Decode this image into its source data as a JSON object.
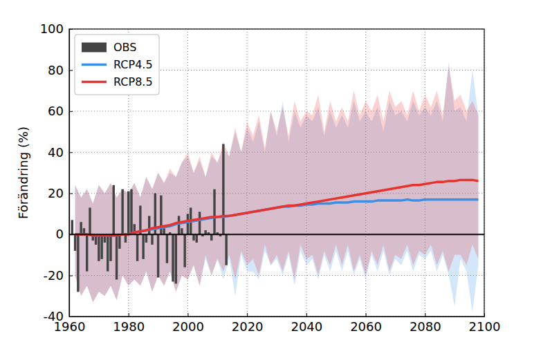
{
  "chart_data": {
    "type": "line",
    "y_label": "Förändring (%)",
    "xlim": [
      1960,
      2100
    ],
    "xticks": [
      1960,
      1980,
      2000,
      2020,
      2040,
      2060,
      2080,
      2100
    ],
    "ylim": [
      -40,
      100
    ],
    "yticks": [
      -40,
      -20,
      0,
      20,
      40,
      60,
      80,
      100
    ],
    "grid": true,
    "legend": "upper left",
    "x": [
      1962,
      1964,
      1966,
      1968,
      1970,
      1972,
      1974,
      1976,
      1978,
      1980,
      1982,
      1984,
      1986,
      1988,
      1990,
      1992,
      1994,
      1996,
      1998,
      2000,
      2002,
      2004,
      2006,
      2008,
      2010,
      2012,
      2014,
      2016,
      2018,
      2020,
      2022,
      2024,
      2026,
      2028,
      2030,
      2032,
      2034,
      2036,
      2038,
      2040,
      2042,
      2044,
      2046,
      2048,
      2050,
      2052,
      2054,
      2056,
      2058,
      2060,
      2062,
      2064,
      2066,
      2068,
      2070,
      2072,
      2074,
      2076,
      2078,
      2080,
      2082,
      2084,
      2086,
      2088,
      2090,
      2092,
      2094,
      2096,
      2098
    ],
    "series": [
      {
        "name": "OBS",
        "type": "bar",
        "color": "#444444",
        "x": [
          1961,
          1962,
          1963,
          1964,
          1965,
          1966,
          1967,
          1968,
          1969,
          1970,
          1971,
          1972,
          1973,
          1974,
          1975,
          1976,
          1977,
          1978,
          1979,
          1980,
          1981,
          1982,
          1983,
          1984,
          1985,
          1986,
          1987,
          1988,
          1989,
          1990,
          1991,
          1992,
          1993,
          1994,
          1995,
          1996,
          1997,
          1998,
          1999,
          2000,
          2001,
          2002,
          2003,
          2004,
          2005,
          2006,
          2007,
          2008,
          2009,
          2010,
          2011,
          2012,
          2013
        ],
        "values": [
          7,
          -8,
          -28,
          6,
          3,
          -18,
          13,
          -3,
          -5,
          -13,
          -12,
          -4,
          -18,
          -13,
          24,
          -22,
          -7,
          22,
          -4,
          21,
          22,
          5,
          -13,
          14,
          -12,
          -4,
          9,
          -5,
          20,
          -21,
          19,
          3,
          -14,
          1,
          -23,
          -24,
          9,
          3,
          -16,
          10,
          13,
          -3,
          -4,
          11,
          -1,
          2,
          1,
          -3,
          22,
          1,
          -1,
          44,
          -15
        ]
      },
      {
        "name": "RCP4.5",
        "type": "line",
        "color": "#3a8ee6",
        "values": [
          0,
          0,
          0,
          -0.5,
          -0.5,
          -0.5,
          -0.5,
          -0.5,
          0,
          0,
          1,
          1.5,
          2,
          2.5,
          3,
          3.5,
          4,
          5,
          5.5,
          6,
          6.5,
          7,
          7.5,
          8,
          8.5,
          8.5,
          9,
          9.5,
          10,
          10.5,
          11,
          11.5,
          12,
          12.5,
          13,
          13.5,
          13.5,
          14,
          14,
          14.5,
          14.5,
          15,
          15,
          15,
          15.5,
          15.5,
          15.5,
          16,
          16,
          16,
          16,
          16.5,
          16.5,
          16.5,
          16.5,
          16.5,
          17,
          16.5,
          16.5,
          17,
          17,
          17,
          17,
          17,
          17,
          17,
          17,
          17,
          17
        ],
        "low": [
          -20,
          -30,
          -25,
          -33,
          -28,
          -30,
          -25,
          -32,
          -20,
          -25,
          -22,
          -25,
          -18,
          -28,
          -20,
          -25,
          -18,
          -28,
          -20,
          -22,
          -15,
          -25,
          -12,
          -20,
          -12,
          -22,
          -12,
          -30,
          -10,
          -18,
          -18,
          -22,
          -8,
          -15,
          -12,
          -20,
          -10,
          -25,
          -8,
          -15,
          -12,
          -22,
          -10,
          -18,
          -8,
          -18,
          -8,
          -20,
          -12,
          -22,
          -10,
          -18,
          -8,
          -20,
          -12,
          -15,
          -8,
          -18,
          -10,
          -12,
          -8,
          -18,
          -10,
          -20,
          -35,
          -12,
          -18,
          -38,
          -15
        ],
        "high": [
          24,
          18,
          22,
          15,
          24,
          20,
          25,
          18,
          22,
          20,
          25,
          18,
          28,
          22,
          30,
          25,
          30,
          28,
          35,
          38,
          30,
          36,
          28,
          38,
          35,
          42,
          38,
          50,
          40,
          52,
          45,
          55,
          40,
          60,
          48,
          65,
          45,
          60,
          52,
          58,
          55,
          62,
          48,
          60,
          52,
          58,
          52,
          65,
          55,
          60,
          55,
          62,
          50,
          65,
          58,
          60,
          55,
          65,
          58,
          62,
          58,
          65,
          55,
          84,
          60,
          62,
          55,
          80,
          58
        ]
      },
      {
        "name": "RCP8.5",
        "type": "line",
        "color": "#e8322e",
        "values": [
          0,
          0,
          0,
          -0.5,
          -0.5,
          -0.5,
          -0.5,
          -0.5,
          0,
          0,
          1,
          1.5,
          2,
          3,
          3.5,
          4,
          4.5,
          5.5,
          6,
          6.5,
          7,
          7.5,
          8,
          8.5,
          8.5,
          9,
          9,
          9.5,
          10,
          10.5,
          11,
          11.5,
          12,
          12.5,
          13,
          13.5,
          14,
          14,
          14.5,
          15,
          15.5,
          16,
          16.5,
          17,
          17.5,
          18,
          18.5,
          19,
          19.5,
          20,
          20.5,
          21,
          21.5,
          22,
          22.5,
          23,
          23.5,
          24,
          24,
          24.5,
          25,
          25.5,
          25.5,
          26,
          26,
          26.5,
          26.5,
          26.5,
          26
        ],
        "low": [
          -20,
          -30,
          -25,
          -33,
          -28,
          -30,
          -25,
          -32,
          -20,
          -25,
          -22,
          -25,
          -18,
          -28,
          -20,
          -25,
          -18,
          -28,
          -20,
          -22,
          -15,
          -25,
          -10,
          -20,
          -12,
          -18,
          -10,
          -22,
          -8,
          -15,
          -12,
          -20,
          -5,
          -15,
          -10,
          -18,
          -8,
          -22,
          -5,
          -12,
          -10,
          -20,
          -8,
          -15,
          -5,
          -15,
          -5,
          -18,
          -10,
          -20,
          -8,
          -15,
          -5,
          -18,
          -10,
          -12,
          -5,
          -15,
          -8,
          -10,
          -5,
          -15,
          -8,
          -18,
          -10,
          -10,
          -15,
          -5,
          -12
        ],
        "high": [
          24,
          18,
          22,
          15,
          24,
          20,
          25,
          18,
          22,
          20,
          25,
          18,
          28,
          22,
          30,
          25,
          32,
          28,
          35,
          40,
          30,
          38,
          28,
          40,
          35,
          45,
          38,
          52,
          40,
          55,
          48,
          58,
          42,
          60,
          50,
          62,
          48,
          65,
          55,
          60,
          58,
          68,
          50,
          65,
          55,
          62,
          55,
          70,
          58,
          65,
          60,
          68,
          55,
          70,
          62,
          65,
          58,
          70,
          60,
          68,
          62,
          70,
          58,
          82,
          65,
          68,
          60,
          65,
          58
        ]
      }
    ]
  }
}
